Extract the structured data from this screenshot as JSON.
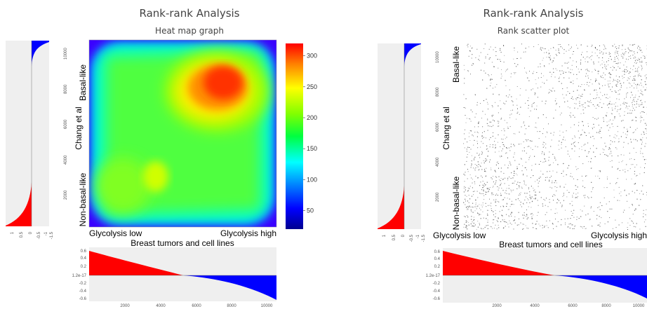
{
  "panels": [
    {
      "title": "Rank-rank Analysis",
      "subtitle": "Heat map graph"
    },
    {
      "title": "Rank-rank Analysis",
      "subtitle": "Rank scatter plot"
    }
  ],
  "chart_data": [
    {
      "type": "heatmap",
      "title": "Rank-rank Analysis",
      "subtitle": "Heat map graph",
      "xlabel": "Breast tumors and cell lines",
      "ylabel": "Chang et al",
      "x_low_label": "Glycolysis low",
      "x_high_label": "Glycolysis high",
      "y_low_label": "Non-basal-like",
      "y_high_label": "Basal-like",
      "colorbar_ticks": [
        50,
        100,
        150,
        200,
        250,
        300
      ],
      "colorbar_range": [
        20,
        320
      ],
      "colormap": "jet",
      "hotspots": [
        {
          "x_rank": 7800,
          "y_rank": 7800,
          "value": 310
        },
        {
          "x_rank": 2400,
          "y_rank": 2400,
          "value": 140
        }
      ]
    },
    {
      "type": "scatter",
      "title": "Rank-rank Analysis",
      "subtitle": "Rank scatter plot",
      "xlabel": "Breast tumors and cell lines",
      "ylabel": "Chang et al",
      "x_low_label": "Glycolysis low",
      "x_high_label": "Glycolysis high",
      "y_low_label": "Non-basal-like",
      "y_high_label": "Basal-like",
      "xlim": [
        0,
        10500
      ],
      "ylim": [
        0,
        10500
      ]
    },
    {
      "type": "area",
      "name": "side-profile",
      "orientation": "vertical",
      "y_ticks": [
        2000,
        4000,
        6000,
        8000,
        10000
      ],
      "x_ticks": [
        "1",
        "0.5",
        "0",
        "-0.5",
        "-1",
        "-1.5"
      ],
      "ylim": [
        0,
        10500
      ],
      "crossover_rank": 6200,
      "colors": {
        "positive": "#ff0000",
        "negative": "#0000ff"
      }
    },
    {
      "type": "area",
      "name": "bottom-profile",
      "orientation": "horizontal",
      "x_ticks": [
        2000,
        4000,
        6000,
        8000,
        10000
      ],
      "y_ticks": [
        "0.6",
        "0.4",
        "0.2",
        "1.2e-17",
        "-0.2",
        "-0.4",
        "-0.6"
      ],
      "xlim": [
        0,
        10500
      ],
      "ylim": [
        -0.65,
        0.65
      ],
      "crossover_rank": 5300,
      "start_value": 0.62,
      "end_value": -0.58,
      "colors": {
        "positive": "#ff0000",
        "negative": "#0000ff"
      }
    }
  ],
  "colors": {
    "profile_background": "#efefef",
    "positive": "#ff0000",
    "negative": "#0000ff"
  }
}
